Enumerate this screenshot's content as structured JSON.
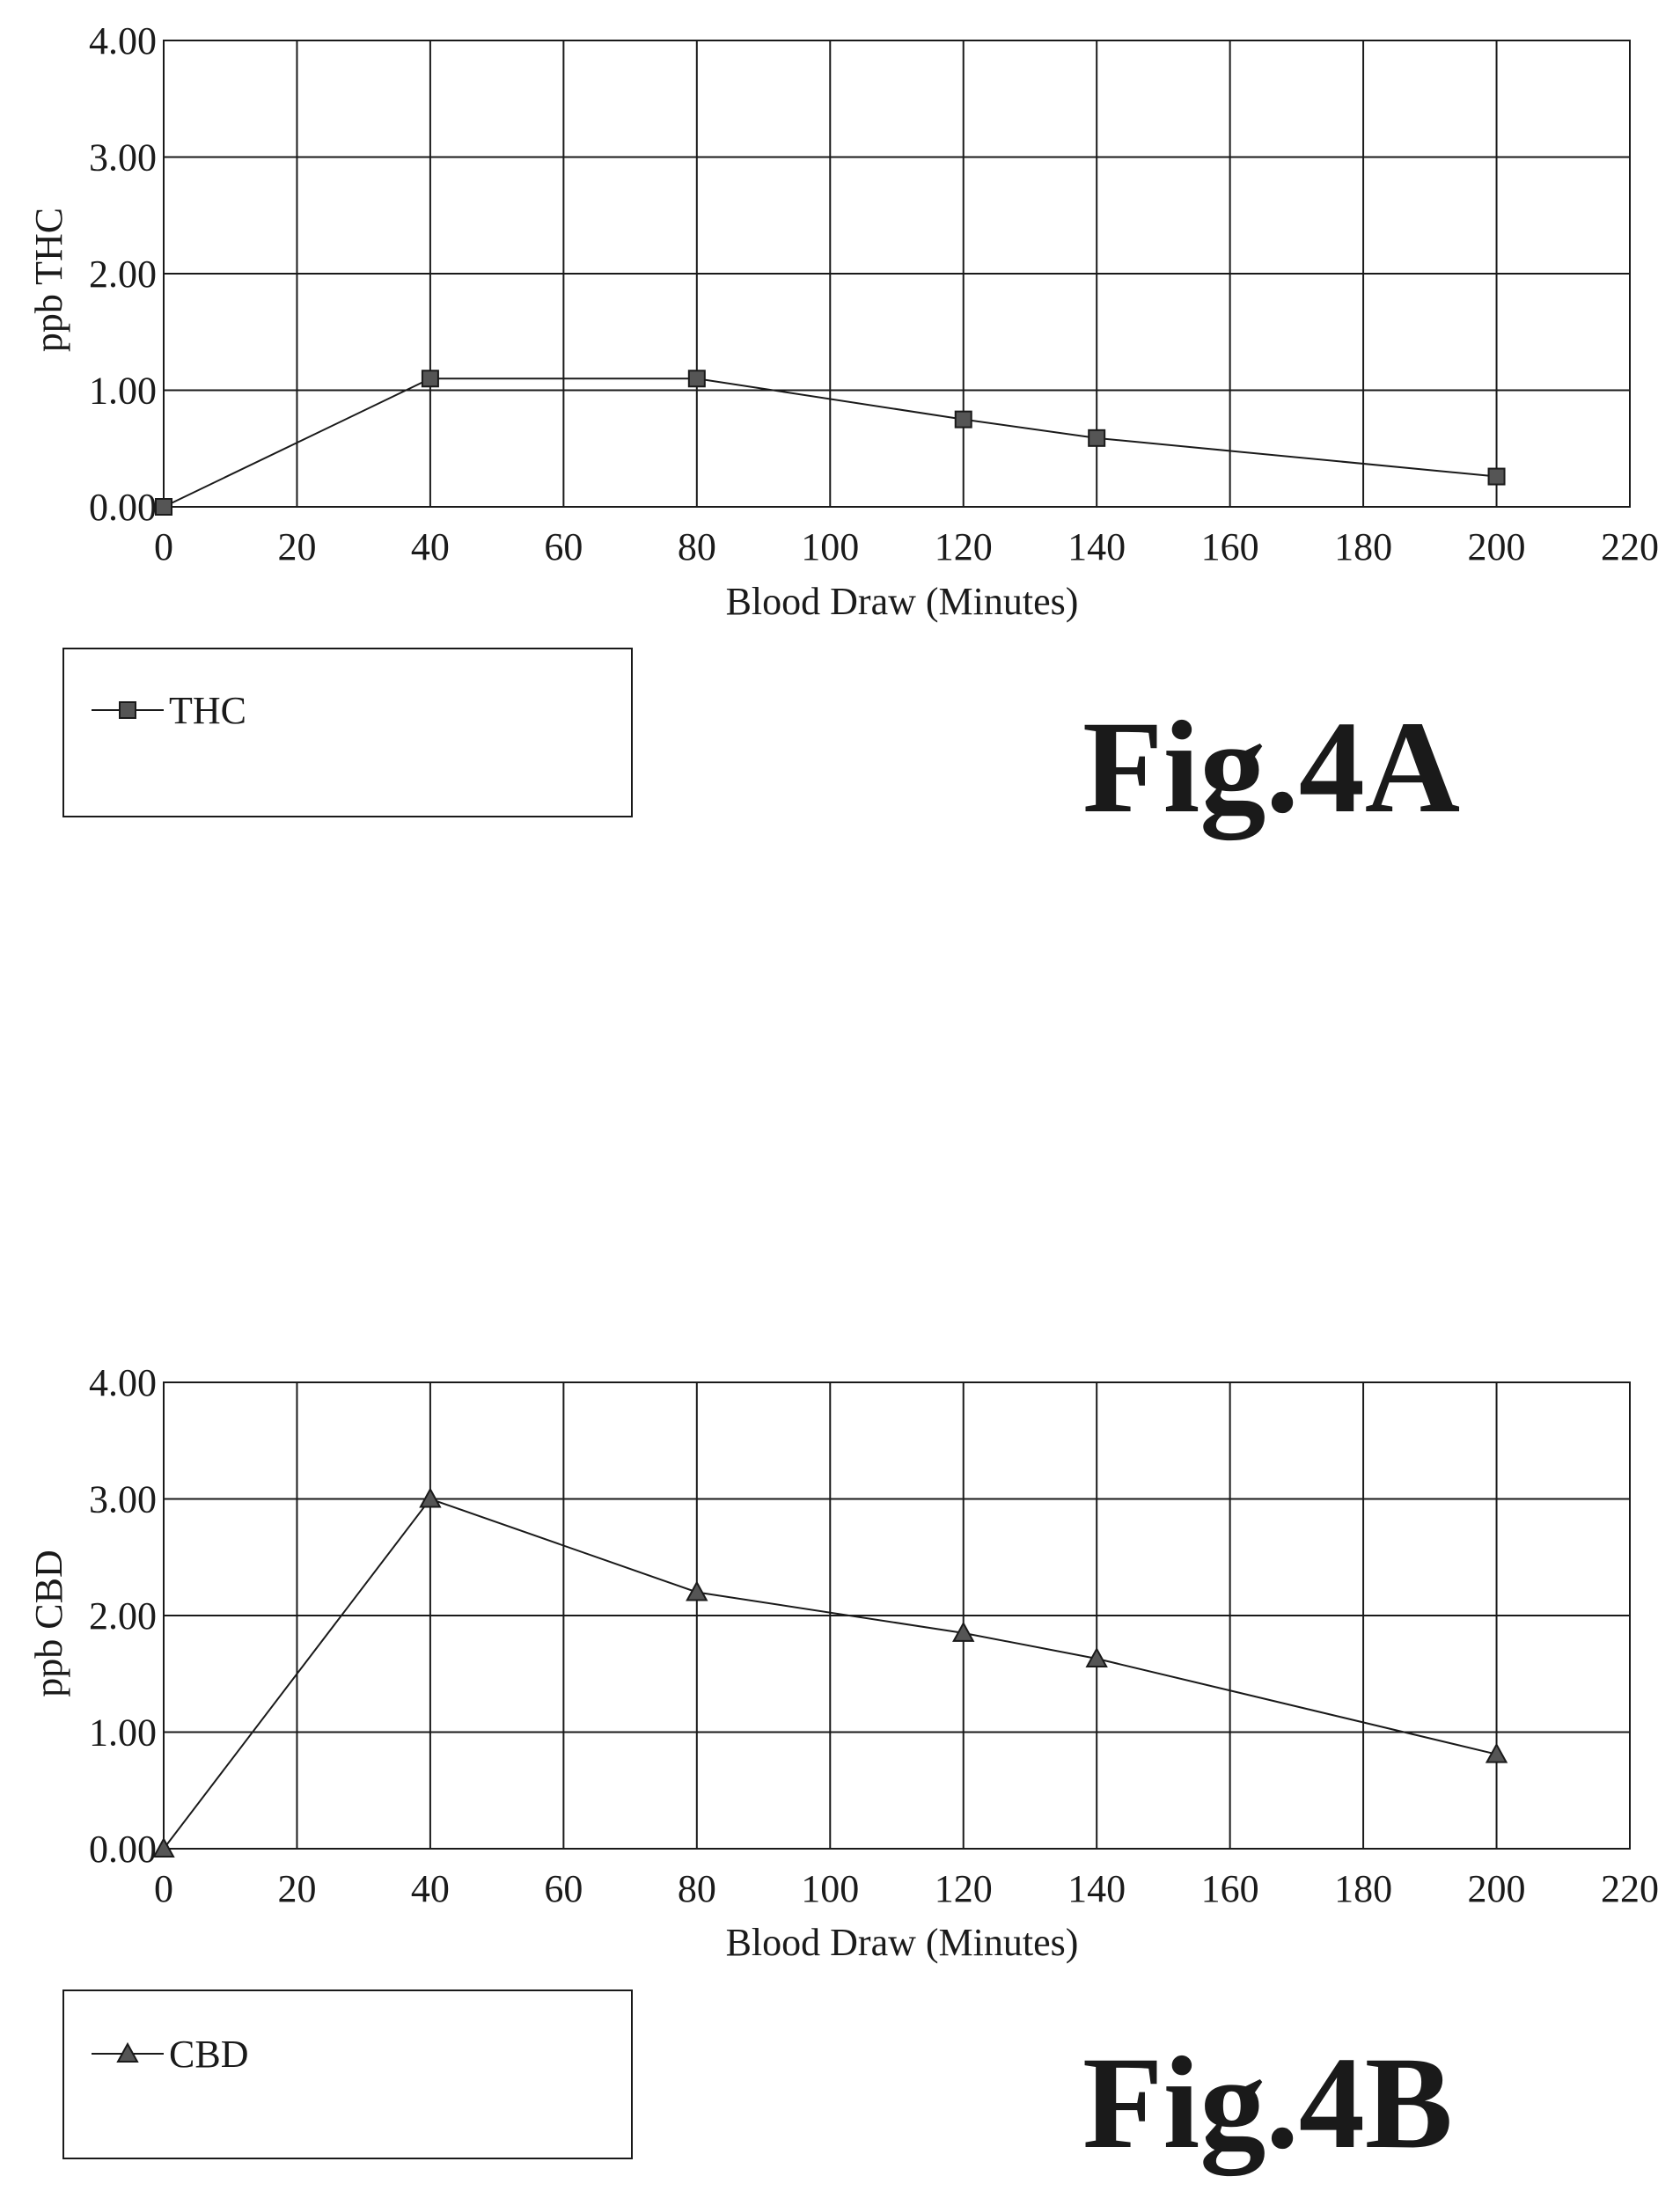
{
  "chart_data": [
    {
      "type": "line",
      "x": [
        0,
        40,
        80,
        120,
        140,
        200
      ],
      "series": [
        {
          "name": "THC",
          "marker": "square",
          "values": [
            0.0,
            1.1,
            1.1,
            0.75,
            0.59,
            0.26
          ]
        }
      ],
      "xlabel": "Blood Draw (Minutes)",
      "ylabel": "ppb THC",
      "xlim": [
        0,
        220
      ],
      "ylim": [
        0,
        4
      ],
      "x_ticks": [
        "0",
        "20",
        "40",
        "60",
        "80",
        "100",
        "120",
        "140",
        "160",
        "180",
        "200",
        "220"
      ],
      "y_ticks": [
        "0.00",
        "1.00",
        "2.00",
        "3.00",
        "4.00"
      ],
      "grid": true,
      "legend_position": "bottom-left",
      "caption": "Fig.4A"
    },
    {
      "type": "line",
      "x": [
        0,
        40,
        80,
        120,
        140,
        200
      ],
      "series": [
        {
          "name": "CBD",
          "marker": "triangle",
          "values": [
            0.0,
            3.0,
            2.2,
            1.85,
            1.63,
            0.81
          ]
        }
      ],
      "xlabel": "Blood Draw (Minutes)",
      "ylabel": "ppb CBD",
      "xlim": [
        0,
        220
      ],
      "ylim": [
        0,
        4
      ],
      "x_ticks": [
        "0",
        "20",
        "40",
        "60",
        "80",
        "100",
        "120",
        "140",
        "160",
        "180",
        "200",
        "220"
      ],
      "y_ticks": [
        "0.00",
        "1.00",
        "2.00",
        "3.00",
        "4.00"
      ],
      "grid": true,
      "legend_position": "bottom-left",
      "caption": "Fig.4B"
    }
  ],
  "colors": {
    "ink": "#1a1a1a",
    "marker_fill": "#555555",
    "background": "#ffffff"
  }
}
